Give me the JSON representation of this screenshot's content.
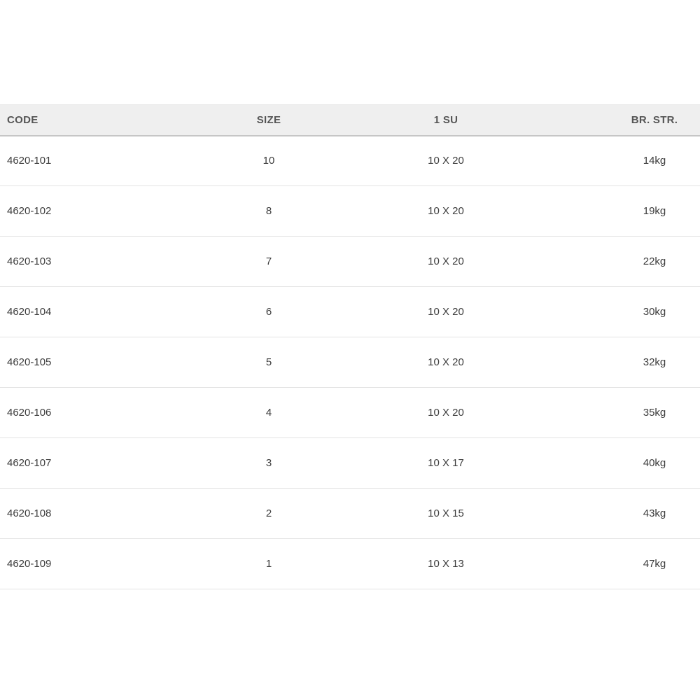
{
  "chart_data": {
    "type": "table",
    "title": "",
    "columns": [
      "CODE",
      "SIZE",
      "1 SU",
      "BR. STR."
    ],
    "rows": [
      [
        "4620-101",
        "10",
        "10 X 20",
        "14kg"
      ],
      [
        "4620-102",
        "8",
        "10 X 20",
        "19kg"
      ],
      [
        "4620-103",
        "7",
        "10 X 20",
        "22kg"
      ],
      [
        "4620-104",
        "6",
        "10 X 20",
        "30kg"
      ],
      [
        "4620-105",
        "5",
        "10 X 20",
        "32kg"
      ],
      [
        "4620-106",
        "4",
        "10 X 20",
        "35kg"
      ],
      [
        "4620-107",
        "3",
        "10 X 17",
        "40kg"
      ],
      [
        "4620-108",
        "2",
        "10 X 15",
        "43kg"
      ],
      [
        "4620-109",
        "1",
        "10 X 13",
        "47kg"
      ]
    ]
  },
  "table": {
    "headers": [
      {
        "label": "CODE"
      },
      {
        "label": "SIZE"
      },
      {
        "label": "1 SU"
      },
      {
        "label": "BR. STR."
      }
    ],
    "rows": [
      {
        "code": "4620-101",
        "size": "10",
        "su": "10 X 20",
        "br_str": "14kg"
      },
      {
        "code": "4620-102",
        "size": "8",
        "su": "10 X 20",
        "br_str": "19kg"
      },
      {
        "code": "4620-103",
        "size": "7",
        "su": "10 X 20",
        "br_str": "22kg"
      },
      {
        "code": "4620-104",
        "size": "6",
        "su": "10 X 20",
        "br_str": "30kg"
      },
      {
        "code": "4620-105",
        "size": "5",
        "su": "10 X 20",
        "br_str": "32kg"
      },
      {
        "code": "4620-106",
        "size": "4",
        "su": "10 X 20",
        "br_str": "35kg"
      },
      {
        "code": "4620-107",
        "size": "3",
        "su": "10 X 17",
        "br_str": "40kg"
      },
      {
        "code": "4620-108",
        "size": "2",
        "su": "10 X 15",
        "br_str": "43kg"
      },
      {
        "code": "4620-109",
        "size": "1",
        "su": "10 X 13",
        "br_str": "47kg"
      }
    ]
  },
  "colors": {
    "page_bg": "#ffffff",
    "header_bg": "#efefef",
    "header_text": "#555555",
    "header_border": "#c6c6c6",
    "row_border": "#e3e3e3",
    "cell_text": "#3c3c3c"
  }
}
